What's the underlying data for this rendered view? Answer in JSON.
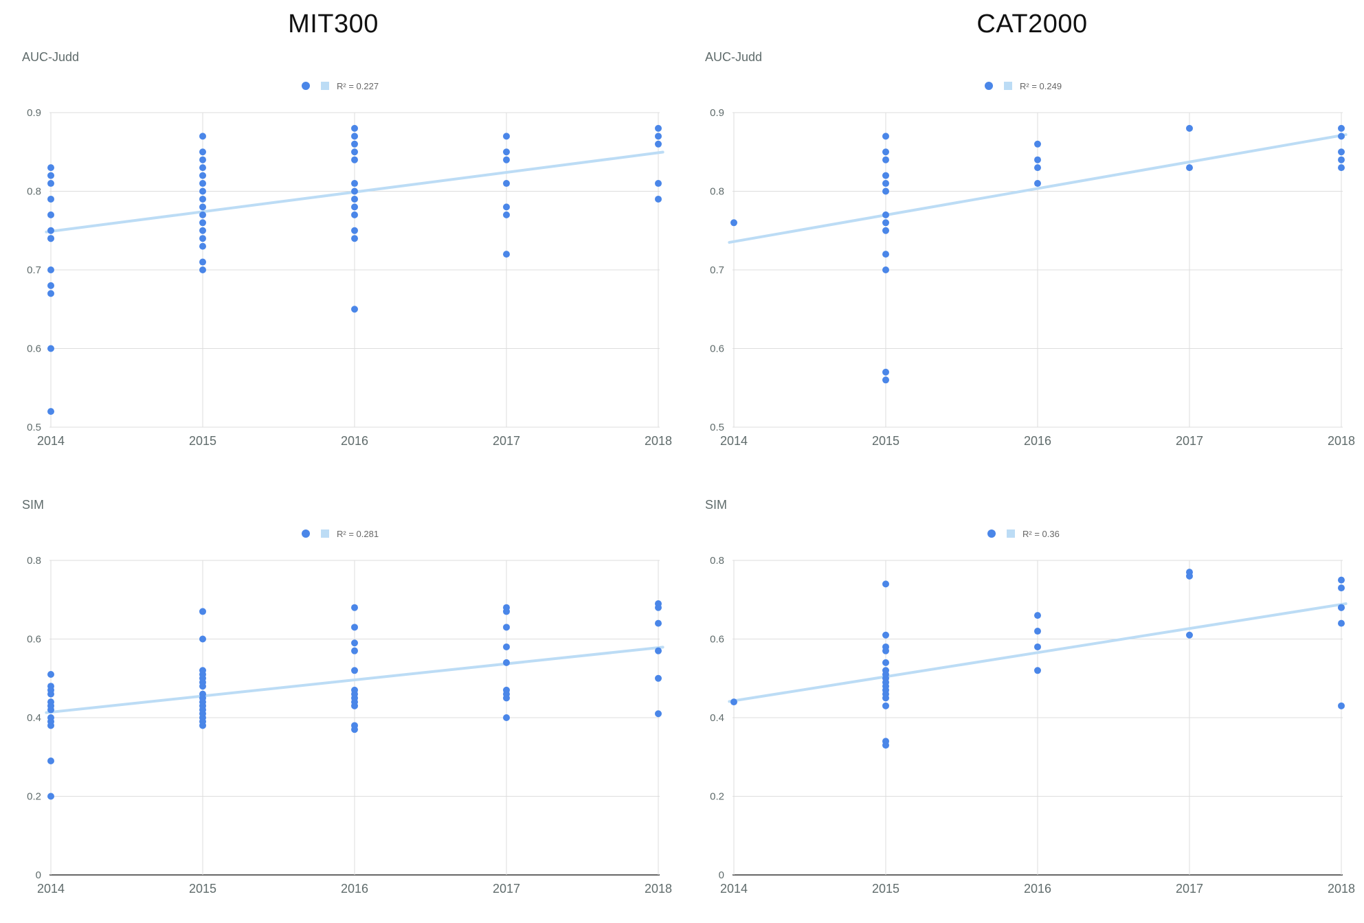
{
  "titles": {
    "left": "MIT300",
    "right": "CAT2000"
  },
  "colors": {
    "points": "#4a86e8",
    "trendline": "#bcdcf5",
    "grid": "#dddddd",
    "baseline": "#333333",
    "text": "#5f6b6b"
  },
  "chart_data": [
    {
      "id": "mit300-auc",
      "type": "scatter",
      "ylabel": "AUC-Judd",
      "legend": "R² = 0.227",
      "xlim": [
        2014,
        2018
      ],
      "ylim": [
        0.5,
        0.9
      ],
      "x_ticks": [
        "2014",
        "2015",
        "2016",
        "2017",
        "2018"
      ],
      "y_ticks": [
        "0.5",
        "0.6",
        "0.7",
        "0.8",
        "0.9"
      ],
      "trendline": [
        [
          2014,
          0.749
        ],
        [
          2018,
          0.849
        ]
      ],
      "points": [
        [
          2014,
          0.83
        ],
        [
          2014,
          0.82
        ],
        [
          2014,
          0.81
        ],
        [
          2014,
          0.79
        ],
        [
          2014,
          0.77
        ],
        [
          2014,
          0.75
        ],
        [
          2014,
          0.74
        ],
        [
          2014,
          0.74
        ],
        [
          2014,
          0.7
        ],
        [
          2014,
          0.68
        ],
        [
          2014,
          0.67
        ],
        [
          2014,
          0.6
        ],
        [
          2014,
          0.52
        ],
        [
          2015,
          0.87
        ],
        [
          2015,
          0.85
        ],
        [
          2015,
          0.84
        ],
        [
          2015,
          0.83
        ],
        [
          2015,
          0.82
        ],
        [
          2015,
          0.81
        ],
        [
          2015,
          0.8
        ],
        [
          2015,
          0.79
        ],
        [
          2015,
          0.78
        ],
        [
          2015,
          0.77
        ],
        [
          2015,
          0.76
        ],
        [
          2015,
          0.75
        ],
        [
          2015,
          0.74
        ],
        [
          2015,
          0.73
        ],
        [
          2015,
          0.71
        ],
        [
          2015,
          0.7
        ],
        [
          2016,
          0.88
        ],
        [
          2016,
          0.87
        ],
        [
          2016,
          0.86
        ],
        [
          2016,
          0.85
        ],
        [
          2016,
          0.84
        ],
        [
          2016,
          0.81
        ],
        [
          2016,
          0.8
        ],
        [
          2016,
          0.79
        ],
        [
          2016,
          0.78
        ],
        [
          2016,
          0.77
        ],
        [
          2016,
          0.75
        ],
        [
          2016,
          0.74
        ],
        [
          2016,
          0.65
        ],
        [
          2017,
          0.87
        ],
        [
          2017,
          0.85
        ],
        [
          2017,
          0.84
        ],
        [
          2017,
          0.81
        ],
        [
          2017,
          0.78
        ],
        [
          2017,
          0.77
        ],
        [
          2017,
          0.72
        ],
        [
          2018,
          0.88
        ],
        [
          2018,
          0.87
        ],
        [
          2018,
          0.86
        ],
        [
          2018,
          0.81
        ],
        [
          2018,
          0.79
        ]
      ]
    },
    {
      "id": "cat2000-auc",
      "type": "scatter",
      "ylabel": "AUC-Judd",
      "legend": "R² = 0.249",
      "xlim": [
        2014,
        2018
      ],
      "ylim": [
        0.5,
        0.9
      ],
      "x_ticks": [
        "2014",
        "2015",
        "2016",
        "2017",
        "2018"
      ],
      "y_ticks": [
        "0.5",
        "0.6",
        "0.7",
        "0.8",
        "0.9"
      ],
      "trendline": [
        [
          2014,
          0.736
        ],
        [
          2018,
          0.871
        ]
      ],
      "points": [
        [
          2014,
          0.76
        ],
        [
          2015,
          0.87
        ],
        [
          2015,
          0.85
        ],
        [
          2015,
          0.84
        ],
        [
          2015,
          0.82
        ],
        [
          2015,
          0.81
        ],
        [
          2015,
          0.8
        ],
        [
          2015,
          0.77
        ],
        [
          2015,
          0.76
        ],
        [
          2015,
          0.75
        ],
        [
          2015,
          0.72
        ],
        [
          2015,
          0.7
        ],
        [
          2015,
          0.57
        ],
        [
          2015,
          0.56
        ],
        [
          2016,
          0.86
        ],
        [
          2016,
          0.84
        ],
        [
          2016,
          0.83
        ],
        [
          2016,
          0.81
        ],
        [
          2017,
          0.88
        ],
        [
          2017,
          0.83
        ],
        [
          2018,
          0.88
        ],
        [
          2018,
          0.87
        ],
        [
          2018,
          0.85
        ],
        [
          2018,
          0.84
        ],
        [
          2018,
          0.83
        ]
      ]
    },
    {
      "id": "mit300-sim",
      "type": "scatter",
      "ylabel": "SIM",
      "legend": "R² = 0.281",
      "xlim": [
        2014,
        2018
      ],
      "ylim": [
        0,
        0.8
      ],
      "x_ticks": [
        "2014",
        "2015",
        "2016",
        "2017",
        "2018"
      ],
      "y_ticks": [
        "0",
        "0.2",
        "0.4",
        "0.6",
        "0.8"
      ],
      "trendline": [
        [
          2014,
          0.414
        ],
        [
          2018,
          0.578
        ]
      ],
      "points": [
        [
          2014,
          0.51
        ],
        [
          2014,
          0.48
        ],
        [
          2014,
          0.47
        ],
        [
          2014,
          0.46
        ],
        [
          2014,
          0.44
        ],
        [
          2014,
          0.43
        ],
        [
          2014,
          0.42
        ],
        [
          2014,
          0.4
        ],
        [
          2014,
          0.39
        ],
        [
          2014,
          0.38
        ],
        [
          2014,
          0.29
        ],
        [
          2014,
          0.2
        ],
        [
          2015,
          0.67
        ],
        [
          2015,
          0.6
        ],
        [
          2015,
          0.52
        ],
        [
          2015,
          0.51
        ],
        [
          2015,
          0.5
        ],
        [
          2015,
          0.49
        ],
        [
          2015,
          0.48
        ],
        [
          2015,
          0.46
        ],
        [
          2015,
          0.45
        ],
        [
          2015,
          0.44
        ],
        [
          2015,
          0.43
        ],
        [
          2015,
          0.42
        ],
        [
          2015,
          0.41
        ],
        [
          2015,
          0.4
        ],
        [
          2015,
          0.39
        ],
        [
          2015,
          0.38
        ],
        [
          2016,
          0.68
        ],
        [
          2016,
          0.63
        ],
        [
          2016,
          0.59
        ],
        [
          2016,
          0.57
        ],
        [
          2016,
          0.52
        ],
        [
          2016,
          0.47
        ],
        [
          2016,
          0.46
        ],
        [
          2016,
          0.45
        ],
        [
          2016,
          0.44
        ],
        [
          2016,
          0.43
        ],
        [
          2016,
          0.38
        ],
        [
          2016,
          0.37
        ],
        [
          2017,
          0.68
        ],
        [
          2017,
          0.67
        ],
        [
          2017,
          0.63
        ],
        [
          2017,
          0.58
        ],
        [
          2017,
          0.54
        ],
        [
          2017,
          0.47
        ],
        [
          2017,
          0.46
        ],
        [
          2017,
          0.45
        ],
        [
          2017,
          0.4
        ],
        [
          2018,
          0.69
        ],
        [
          2018,
          0.68
        ],
        [
          2018,
          0.64
        ],
        [
          2018,
          0.57
        ],
        [
          2018,
          0.5
        ],
        [
          2018,
          0.41
        ]
      ]
    },
    {
      "id": "cat2000-sim",
      "type": "scatter",
      "ylabel": "SIM",
      "legend": "R² = 0.36",
      "xlim": [
        2014,
        2018
      ],
      "ylim": [
        0,
        0.8
      ],
      "x_ticks": [
        "2014",
        "2015",
        "2016",
        "2017",
        "2018"
      ],
      "y_ticks": [
        "0",
        "0.2",
        "0.4",
        "0.6",
        "0.8"
      ],
      "trendline": [
        [
          2014,
          0.443
        ],
        [
          2018,
          0.688
        ]
      ],
      "points": [
        [
          2014,
          0.44
        ],
        [
          2015,
          0.74
        ],
        [
          2015,
          0.61
        ],
        [
          2015,
          0.58
        ],
        [
          2015,
          0.57
        ],
        [
          2015,
          0.54
        ],
        [
          2015,
          0.52
        ],
        [
          2015,
          0.51
        ],
        [
          2015,
          0.5
        ],
        [
          2015,
          0.49
        ],
        [
          2015,
          0.48
        ],
        [
          2015,
          0.47
        ],
        [
          2015,
          0.46
        ],
        [
          2015,
          0.45
        ],
        [
          2015,
          0.43
        ],
        [
          2015,
          0.34
        ],
        [
          2015,
          0.33
        ],
        [
          2016,
          0.66
        ],
        [
          2016,
          0.62
        ],
        [
          2016,
          0.58
        ],
        [
          2016,
          0.52
        ],
        [
          2017,
          0.77
        ],
        [
          2017,
          0.76
        ],
        [
          2017,
          0.61
        ],
        [
          2018,
          0.75
        ],
        [
          2018,
          0.73
        ],
        [
          2018,
          0.68
        ],
        [
          2018,
          0.68
        ],
        [
          2018,
          0.64
        ],
        [
          2018,
          0.43
        ]
      ]
    }
  ]
}
